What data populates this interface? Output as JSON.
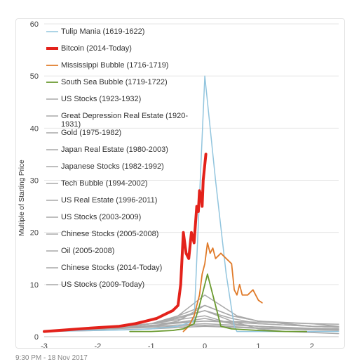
{
  "footer": {
    "timestamp": "9:30 PM - 18 Nov 2017"
  },
  "chart_data": {
    "type": "line",
    "ylabel": "Multiple of Starting Price",
    "xlabel": "",
    "xlim": [
      -3,
      2.5
    ],
    "ylim": [
      0,
      60
    ],
    "xticks": [
      "-3",
      "-2",
      "-1",
      "0",
      "1",
      "2"
    ],
    "yticks": [
      "0",
      "10",
      "20",
      "30",
      "40",
      "50",
      "60"
    ],
    "grid": "horizontal",
    "legend_position": "top-left",
    "colors": {
      "tulip": "#92c5de",
      "bitcoin": "#e3221b",
      "mississippi": "#e07b2a",
      "southsea": "#6a9a2f",
      "others": "#a9a9a9"
    },
    "series": [
      {
        "name": "Tulip Mania (1619-1622)",
        "color": "#92c5de",
        "width": 1.5,
        "x": [
          -3,
          -2.5,
          -2,
          -1.5,
          -1,
          -0.5,
          -0.2,
          0,
          0.2,
          0.4,
          0.55,
          0.6,
          1,
          2.5
        ],
        "y": [
          1,
          1.1,
          1.2,
          1.3,
          1.5,
          2,
          3,
          50,
          30,
          12,
          2,
          1,
          1,
          1
        ]
      },
      {
        "name": "Bitcoin (2014-Today)",
        "color": "#e3221b",
        "width": 4,
        "x": [
          -3,
          -2.6,
          -2.2,
          -1.9,
          -1.6,
          -1.3,
          -1.1,
          -0.9,
          -0.7,
          -0.6,
          -0.5,
          -0.45,
          -0.4,
          -0.35,
          -0.3,
          -0.25,
          -0.2,
          -0.15,
          -0.12,
          -0.1,
          -0.07,
          -0.05,
          -0.03,
          0,
          0.02
        ],
        "y": [
          1,
          1.3,
          1.6,
          1.8,
          2,
          2.5,
          3,
          3.5,
          4.5,
          5,
          6,
          10,
          20,
          16,
          15,
          20,
          18,
          25,
          24,
          28,
          27,
          25,
          30,
          33,
          35
        ]
      },
      {
        "name": "Mississippi Bubble (1716-1719)",
        "color": "#e07b2a",
        "width": 1.8,
        "x": [
          -0.4,
          -0.3,
          -0.2,
          -0.1,
          -0.05,
          0,
          0.05,
          0.1,
          0.15,
          0.2,
          0.3,
          0.4,
          0.5,
          0.55,
          0.6,
          0.65,
          0.7,
          0.8,
          0.9,
          1,
          1.07
        ],
        "y": [
          1,
          2,
          4,
          8,
          12,
          14,
          18,
          16,
          17,
          15,
          16,
          15,
          14,
          9,
          8,
          10,
          8,
          8,
          9,
          7,
          6.5
        ]
      },
      {
        "name": "South Sea Bubble (1719-1722)",
        "color": "#6a9a2f",
        "width": 1.8,
        "x": [
          -1.4,
          -1,
          -0.6,
          -0.4,
          -0.2,
          -0.1,
          0,
          0.05,
          0.1,
          0.2,
          0.3,
          0.5,
          1,
          1.5,
          1.9
        ],
        "y": [
          1,
          1,
          1.2,
          1.5,
          2.5,
          6,
          10,
          12,
          10,
          6,
          2,
          1.5,
          1.2,
          1,
          1
        ]
      },
      {
        "name": "US Stocks (1923-1932)",
        "color": "#a9a9a9",
        "width": 1.5,
        "x": [
          -3,
          -2.5,
          -2,
          -1.5,
          -1,
          -0.5,
          0,
          0.5,
          1,
          1.5,
          2,
          2.5
        ],
        "y": [
          1,
          1.2,
          1.5,
          2,
          2.5,
          3.5,
          5,
          3,
          1.5,
          1,
          0.8,
          0.6
        ]
      },
      {
        "name": "Great Depression Real Estate (1920-1931)",
        "color": "#a9a9a9",
        "width": 1.5,
        "x": [
          -3,
          -2,
          -1,
          0,
          1,
          2,
          2.5
        ],
        "y": [
          1,
          1.2,
          1.5,
          2,
          1.6,
          1.3,
          1.2
        ]
      },
      {
        "name": "Gold (1975-1982)",
        "color": "#a9a9a9",
        "width": 1.5,
        "x": [
          -3,
          -2,
          -1,
          -0.5,
          0,
          0.5,
          1,
          2,
          2.5
        ],
        "y": [
          1,
          1.5,
          2,
          3,
          6,
          4,
          3,
          2.5,
          2
        ]
      },
      {
        "name": "Japan Real Estate (1980-2003)",
        "color": "#a9a9a9",
        "width": 1.5,
        "x": [
          -3,
          -2,
          -1,
          0,
          1,
          2,
          2.5
        ],
        "y": [
          1,
          1.5,
          2.2,
          3,
          2.5,
          2,
          1.8
        ]
      },
      {
        "name": "Japanese Stocks (1982-1992)",
        "color": "#a9a9a9",
        "width": 1.5,
        "x": [
          -3,
          -2,
          -1,
          0,
          0.5,
          1,
          2,
          2.5
        ],
        "y": [
          1,
          1.5,
          2.5,
          5,
          3.5,
          2.5,
          2,
          1.8
        ]
      },
      {
        "name": "Tech Bubble (1994-2002)",
        "color": "#a9a9a9",
        "width": 1.5,
        "x": [
          -3,
          -2,
          -1,
          -0.5,
          0,
          0.3,
          0.6,
          1,
          2,
          2.5
        ],
        "y": [
          1,
          1.5,
          2.5,
          4,
          8,
          6,
          4,
          3,
          2,
          1.8
        ]
      },
      {
        "name": "US Real Estate (1996-2011)",
        "color": "#a9a9a9",
        "width": 1.5,
        "x": [
          -3,
          -2,
          -1,
          0,
          1,
          2,
          2.5
        ],
        "y": [
          1,
          1.4,
          1.8,
          2.2,
          1.7,
          1.5,
          1.4
        ]
      },
      {
        "name": "US Stocks (2003-2009)",
        "color": "#a9a9a9",
        "width": 1.5,
        "x": [
          -3,
          -2,
          -1,
          0,
          1,
          2,
          2.5
        ],
        "y": [
          1,
          1.5,
          2,
          2.5,
          2,
          1.5,
          1.4
        ]
      },
      {
        "name": "Chinese Stocks (2005-2008)",
        "color": "#a9a9a9",
        "width": 1.5,
        "x": [
          -3,
          -2,
          -1,
          -0.5,
          0,
          0.5,
          1,
          2,
          2.5
        ],
        "y": [
          1,
          1.5,
          2.5,
          4,
          6,
          4,
          3,
          2,
          2
        ]
      },
      {
        "name": "Oil (2005-2008)",
        "color": "#a9a9a9",
        "width": 1.5,
        "x": [
          -3,
          -2,
          -1,
          0,
          0.5,
          1,
          2,
          2.5
        ],
        "y": [
          1,
          1.5,
          2.5,
          4,
          2.5,
          2,
          1.5,
          1.5
        ]
      },
      {
        "name": "Chinese Stocks (2014-Today)",
        "color": "#a9a9a9",
        "width": 1.5,
        "x": [
          -3,
          -2,
          -1,
          0,
          0.5,
          1,
          2,
          2.5
        ],
        "y": [
          1,
          1.5,
          2,
          3.5,
          2.5,
          2,
          1.6,
          1.5
        ]
      },
      {
        "name": "US Stocks (2009-Today)",
        "color": "#a9a9a9",
        "width": 1.5,
        "x": [
          -3,
          -2,
          -1,
          0,
          1,
          2,
          2.5
        ],
        "y": [
          1,
          1.8,
          2.5,
          3,
          2.8,
          2.5,
          2.4
        ]
      }
    ]
  }
}
